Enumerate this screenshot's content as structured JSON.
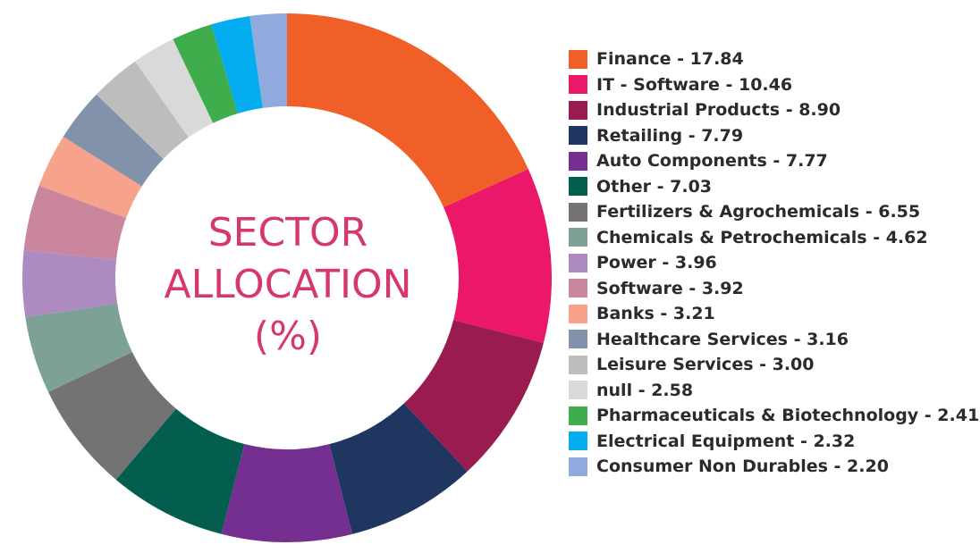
{
  "chart_data": {
    "type": "pie",
    "donut": true,
    "center_label": [
      "SECTOR",
      "ALLOCATION",
      "(%)"
    ],
    "legend_position": "right",
    "label_separator": " - ",
    "slices": [
      {
        "label": "Finance",
        "value": 17.84,
        "display": "17.84",
        "color": "#f05f28"
      },
      {
        "label": "IT - Software",
        "value": 10.46,
        "display": "10.46",
        "color": "#eb1869"
      },
      {
        "label": "Industrial Products",
        "value": 8.9,
        "display": "8.90",
        "color": "#9a1b50"
      },
      {
        "label": "Retailing",
        "value": 7.79,
        "display": "7.79",
        "color": "#1e3660"
      },
      {
        "label": "Auto Components",
        "value": 7.77,
        "display": "7.77",
        "color": "#742f91"
      },
      {
        "label": "Other",
        "value": 7.03,
        "display": "7.03",
        "color": "#045e4f"
      },
      {
        "label": "Fertilizers & Agrochemicals",
        "value": 6.55,
        "display": "6.55",
        "color": "#737373"
      },
      {
        "label": "Chemicals & Petrochemicals",
        "value": 4.62,
        "display": "4.62",
        "color": "#7ea197"
      },
      {
        "label": "Power",
        "value": 3.96,
        "display": "3.96",
        "color": "#ad8abf"
      },
      {
        "label": "Software",
        "value": 3.92,
        "display": "3.92",
        "color": "#c9869c"
      },
      {
        "label": "Banks",
        "value": 3.21,
        "display": "3.21",
        "color": "#f7a38c"
      },
      {
        "label": "Healthcare Services",
        "value": 3.16,
        "display": "3.16",
        "color": "#8292ab"
      },
      {
        "label": "Leisure Services",
        "value": 3.0,
        "display": "3.00",
        "color": "#bdbdbd"
      },
      {
        "label": "null",
        "value": 2.58,
        "display": "2.58",
        "color": "#d9d9d9"
      },
      {
        "label": "Pharmaceuticals & Biotechnology",
        "value": 2.41,
        "display": "2.41",
        "color": "#3fad4b"
      },
      {
        "label": "Electrical Equipment",
        "value": 2.32,
        "display": "2.32",
        "color": "#03adef"
      },
      {
        "label": "Consumer Non Durables",
        "value": 2.2,
        "display": "2.20",
        "color": "#90aadd"
      }
    ]
  }
}
